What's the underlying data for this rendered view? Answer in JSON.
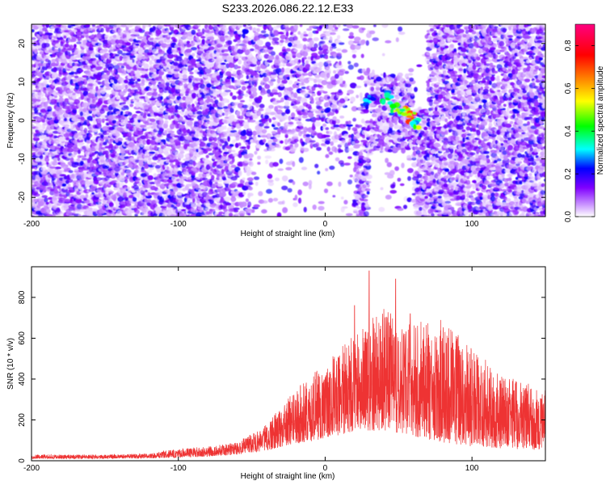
{
  "title": "S233.2026.086.22.12.E33",
  "chart_data": [
    {
      "type": "heatmap",
      "xlabel": "Height of straight line (km)",
      "ylabel": "Frequency (Hz)",
      "xlim": [
        -200,
        150
      ],
      "ylim": [
        -25,
        25
      ],
      "x_ticks": [
        -200,
        -100,
        0,
        100
      ],
      "y_ticks": [
        -20,
        -10,
        0,
        10,
        20
      ],
      "colorbar": {
        "label": "Normalized spectral amplitude",
        "range": [
          0,
          0.9
        ],
        "ticks": [
          0.0,
          0.2,
          0.4,
          0.6,
          0.8
        ],
        "colors": [
          "#ffffff",
          "#cc99ff",
          "#8000ff",
          "#0000ff",
          "#00ffff",
          "#00ff00",
          "#ffff00",
          "#ff8000",
          "#ff0000",
          "#ff0080"
        ]
      },
      "hotspots": [
        {
          "x": 30,
          "y": 5,
          "value": 0.35
        },
        {
          "x": 42,
          "y": 6,
          "value": 0.45
        },
        {
          "x": 48,
          "y": 3,
          "value": 0.55
        },
        {
          "x": 55,
          "y": 2,
          "value": 0.7
        },
        {
          "x": 60,
          "y": 1,
          "value": 0.85
        },
        {
          "x": 62,
          "y": -1,
          "value": 0.6
        }
      ]
    },
    {
      "type": "line",
      "xlabel": "Height of straight line (km)",
      "ylabel": "SNR (10 * v/v)",
      "xlim": [
        -200,
        150
      ],
      "ylim": [
        0,
        950
      ],
      "x_ticks": [
        -200,
        -100,
        0,
        100
      ],
      "y_ticks": [
        0,
        200,
        400,
        600,
        800
      ],
      "color": "#ee3333",
      "envelope": {
        "x": [
          -200,
          -150,
          -120,
          -100,
          -80,
          -60,
          -40,
          -20,
          0,
          20,
          40,
          60,
          80,
          100,
          120,
          150
        ],
        "upper": [
          30,
          30,
          35,
          60,
          70,
          90,
          180,
          350,
          480,
          620,
          760,
          680,
          700,
          560,
          420,
          350
        ],
        "lower": [
          10,
          10,
          12,
          15,
          20,
          30,
          50,
          80,
          110,
          140,
          150,
          120,
          90,
          70,
          60,
          50
        ]
      },
      "peaks": [
        {
          "x": 30,
          "y": 930
        },
        {
          "x": 48,
          "y": 890
        },
        {
          "x": 20,
          "y": 760
        },
        {
          "x": 58,
          "y": 720
        }
      ]
    }
  ]
}
